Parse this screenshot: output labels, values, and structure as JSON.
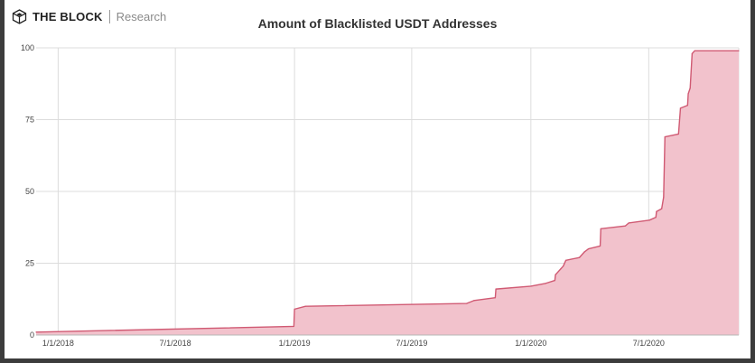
{
  "brand": {
    "name": "THE BLOCK",
    "subtitle": "Research"
  },
  "chart_data": {
    "type": "area",
    "title": "Amount of Blacklisted USDT Addresses",
    "xlabel": "",
    "ylabel": "",
    "x_range": [
      "2017-11-28",
      "2020-11-17"
    ],
    "ylim": [
      0,
      100
    ],
    "y_ticks": [
      0,
      25,
      50,
      75,
      100
    ],
    "x_ticks": [
      {
        "date": "2018-01-01",
        "label": "1/1/2018"
      },
      {
        "date": "2018-07-01",
        "label": "7/1/2018"
      },
      {
        "date": "2019-01-01",
        "label": "1/1/2019"
      },
      {
        "date": "2019-07-01",
        "label": "7/1/2019"
      },
      {
        "date": "2020-01-01",
        "label": "1/1/2020"
      },
      {
        "date": "2020-07-01",
        "label": "7/1/2020"
      }
    ],
    "grid": true,
    "colors": {
      "line": "#d05a73",
      "fill": "#f2c2cc",
      "grid": "#dcdcdc"
    },
    "series": [
      {
        "points": [
          {
            "x": "2017-11-28",
            "y": 1
          },
          {
            "x": "2018-12-31",
            "y": 3
          },
          {
            "x": "2019-01-01",
            "y": 9
          },
          {
            "x": "2019-01-18",
            "y": 10
          },
          {
            "x": "2019-09-24",
            "y": 11
          },
          {
            "x": "2019-10-05",
            "y": 12
          },
          {
            "x": "2019-11-07",
            "y": 13
          },
          {
            "x": "2019-11-08",
            "y": 16
          },
          {
            "x": "2020-01-01",
            "y": 17
          },
          {
            "x": "2020-01-24",
            "y": 18
          },
          {
            "x": "2020-02-07",
            "y": 19
          },
          {
            "x": "2020-02-08",
            "y": 21
          },
          {
            "x": "2020-02-12",
            "y": 22
          },
          {
            "x": "2020-02-16",
            "y": 23
          },
          {
            "x": "2020-02-20",
            "y": 24
          },
          {
            "x": "2020-02-24",
            "y": 26
          },
          {
            "x": "2020-03-16",
            "y": 27
          },
          {
            "x": "2020-03-24",
            "y": 29
          },
          {
            "x": "2020-03-30",
            "y": 30
          },
          {
            "x": "2020-04-17",
            "y": 31
          },
          {
            "x": "2020-04-18",
            "y": 37
          },
          {
            "x": "2020-05-26",
            "y": 38
          },
          {
            "x": "2020-05-31",
            "y": 39
          },
          {
            "x": "2020-07-02",
            "y": 40
          },
          {
            "x": "2020-07-12",
            "y": 41
          },
          {
            "x": "2020-07-13",
            "y": 43
          },
          {
            "x": "2020-07-21",
            "y": 44
          },
          {
            "x": "2020-07-24",
            "y": 48
          },
          {
            "x": "2020-07-26",
            "y": 69
          },
          {
            "x": "2020-08-16",
            "y": 70
          },
          {
            "x": "2020-08-19",
            "y": 79
          },
          {
            "x": "2020-08-30",
            "y": 80
          },
          {
            "x": "2020-08-31",
            "y": 84
          },
          {
            "x": "2020-09-03",
            "y": 86
          },
          {
            "x": "2020-09-06",
            "y": 98
          },
          {
            "x": "2020-09-10",
            "y": 99
          },
          {
            "x": "2020-11-17",
            "y": 99
          }
        ]
      }
    ]
  }
}
